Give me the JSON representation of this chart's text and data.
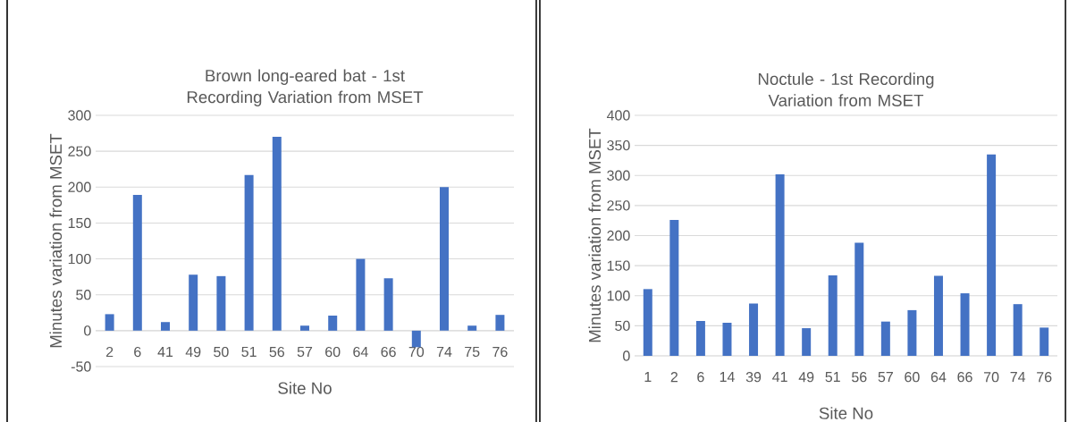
{
  "chart_data": [
    {
      "type": "bar",
      "title": "Brown long-eared bat - 1st Recording Variation from MSET",
      "xlabel": "Site No",
      "ylabel": "Minutes variation from MSET",
      "categories": [
        "2",
        "6",
        "41",
        "49",
        "50",
        "51",
        "56",
        "57",
        "60",
        "64",
        "66",
        "70",
        "74",
        "75",
        "76"
      ],
      "values": [
        23,
        189,
        12,
        78,
        76,
        217,
        270,
        7,
        21,
        100,
        73,
        -23,
        200,
        7,
        22
      ],
      "color": "#4472c4",
      "ylim": [
        -50,
        300
      ],
      "yticks": [
        -50,
        0,
        50,
        100,
        150,
        200,
        250,
        300
      ],
      "grid": "y"
    },
    {
      "type": "bar",
      "title": "Noctule - 1st Recording Variation from MSET",
      "xlabel": "Site No",
      "ylabel": "Minutes variation from MSET",
      "categories": [
        "1",
        "2",
        "6",
        "14",
        "39",
        "41",
        "49",
        "51",
        "56",
        "57",
        "60",
        "64",
        "66",
        "70",
        "74",
        "76"
      ],
      "values": [
        111,
        226,
        58,
        55,
        87,
        302,
        46,
        134,
        188,
        57,
        76,
        133,
        104,
        335,
        86,
        47
      ],
      "color": "#4472c4",
      "ylim": [
        0,
        400
      ],
      "yticks": [
        0,
        50,
        100,
        150,
        200,
        250,
        300,
        350,
        400
      ],
      "grid": "y"
    }
  ]
}
